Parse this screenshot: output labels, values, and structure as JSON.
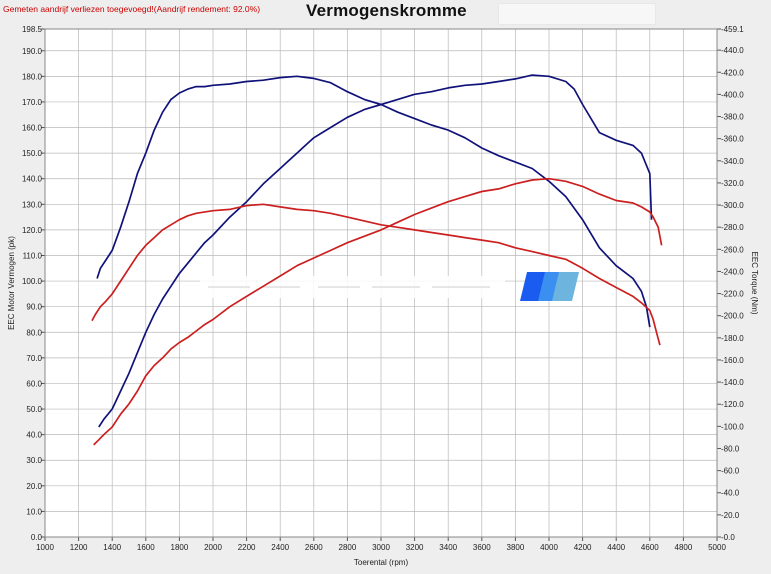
{
  "header": {
    "note": "Gemeten aandrijf verliezen toegevoegd!(Aandrijf rendement: 92.0%)",
    "title": "Vermogenskromme"
  },
  "colors": {
    "wheel": "#10127a",
    "engine": "#cc1f1f",
    "grid": "#b9b9b9",
    "plot_bg": "#ffffff",
    "page_bg": "#eeeeee",
    "logo": [
      "#1a5cf0",
      "#3b8ff0",
      "#6db4de"
    ]
  },
  "chart_data": {
    "type": "line",
    "xlabel": "Toerental (rpm)",
    "ylabel": "EEC Motor Vermogen (pk)",
    "y2label": "EEC Torque (Nm)",
    "xlim": [
      1000,
      5000
    ],
    "ylim": [
      0,
      198.5
    ],
    "y2lim": [
      0,
      459.1
    ],
    "grid": true,
    "x_ticks": [
      "1000",
      "1200",
      "1400",
      "1600",
      "1800",
      "2000",
      "2200",
      "2400",
      "2600",
      "2800",
      "3000",
      "3200",
      "3400",
      "3600",
      "3800",
      "4000",
      "4200",
      "4400",
      "4600",
      "4800",
      "5000"
    ],
    "y_ticks": [
      "0.0",
      "10.0",
      "20.0",
      "30.0",
      "40.0",
      "50.0",
      "60.0",
      "70.0",
      "80.0",
      "90.0",
      "100.0",
      "110.0",
      "120.0",
      "130.0",
      "140.0",
      "150.0",
      "160.0",
      "170.0",
      "180.0",
      "190.0",
      "198.5"
    ],
    "y2_ticks": [
      "0.0",
      "20.0",
      "40.0",
      "60.0",
      "80.0",
      "100.0",
      "120.0",
      "140.0",
      "160.0",
      "180.0",
      "200.0",
      "220.0",
      "240.0",
      "260.0",
      "280.0",
      "300.0",
      "320.0",
      "340.0",
      "360.0",
      "380.0",
      "400.0",
      "420.0",
      "440.0",
      "459.1"
    ],
    "series": [
      {
        "axis": "left",
        "color_key": "wheel",
        "x": [
          1320,
          1350,
          1400,
          1450,
          1500,
          1550,
          1600,
          1650,
          1700,
          1750,
          1800,
          1850,
          1900,
          1950,
          2000,
          2100,
          2200,
          2300,
          2400,
          2450,
          2500,
          2550,
          2600,
          2650,
          2700,
          2800,
          2900,
          3000,
          3100,
          3200,
          3300,
          3400,
          3500,
          3600,
          3700,
          3800,
          3900,
          4000,
          4100,
          4150,
          4200,
          4300,
          4400,
          4500,
          4550,
          4600,
          4610
        ],
        "y": [
          43,
          46,
          50,
          57,
          64,
          72,
          80,
          87,
          93,
          98,
          103,
          107,
          111,
          115,
          118,
          125,
          131,
          138,
          144,
          147,
          150,
          153,
          156,
          158,
          160,
          164,
          167,
          169,
          171,
          173,
          174,
          175.5,
          176.5,
          177,
          178,
          179,
          180.5,
          180,
          178,
          175,
          169,
          158,
          155,
          153,
          150,
          142,
          124
        ]
      },
      {
        "axis": "left",
        "color_key": "wheel",
        "x": [
          1310,
          1330,
          1360,
          1400,
          1450,
          1500,
          1550,
          1600,
          1650,
          1700,
          1750,
          1800,
          1850,
          1900,
          1950,
          2000,
          2100,
          2200,
          2300,
          2400,
          2500,
          2550,
          2600,
          2700,
          2800,
          2900,
          3000,
          3100,
          3200,
          3300,
          3400,
          3500,
          3600,
          3700,
          3800,
          3900,
          4000,
          4100,
          4200,
          4300,
          4400,
          4450,
          4500,
          4550,
          4580,
          4600
        ],
        "y": [
          101,
          105,
          108,
          112,
          121,
          131,
          142,
          150,
          159,
          166,
          171,
          173.5,
          175,
          176,
          176,
          176.5,
          177,
          178,
          178.5,
          179.5,
          180,
          179.6,
          179.2,
          177.5,
          174,
          171,
          169,
          166,
          163.5,
          161,
          159,
          156,
          152,
          149,
          146.5,
          144,
          139,
          133,
          124,
          113,
          106,
          103.5,
          101,
          96,
          90,
          82
        ]
      },
      {
        "axis": "left",
        "color_key": "engine",
        "x": [
          1290,
          1320,
          1350,
          1400,
          1450,
          1500,
          1550,
          1600,
          1650,
          1700,
          1750,
          1800,
          1850,
          1900,
          1950,
          2000,
          2100,
          2200,
          2300,
          2400,
          2500,
          2600,
          2700,
          2800,
          2900,
          3000,
          3100,
          3200,
          3300,
          3400,
          3500,
          3600,
          3700,
          3800,
          3900,
          4000,
          4100,
          4200,
          4300,
          4400,
          4500,
          4550,
          4600,
          4620,
          4650,
          4670
        ],
        "y": [
          36,
          38,
          40,
          43,
          48,
          52,
          57,
          63,
          67,
          70,
          73.5,
          76,
          78,
          80.5,
          83,
          85,
          90,
          94,
          98,
          102,
          106,
          109,
          112,
          115,
          117.5,
          120,
          123,
          126,
          128.5,
          131,
          133,
          135,
          136,
          138,
          139.5,
          140,
          139,
          137,
          134,
          131.5,
          130.5,
          129,
          127,
          125,
          121,
          114
        ]
      },
      {
        "axis": "left",
        "color_key": "engine",
        "x": [
          1280,
          1300,
          1330,
          1360,
          1400,
          1450,
          1500,
          1550,
          1600,
          1650,
          1700,
          1750,
          1800,
          1850,
          1900,
          2000,
          2100,
          2200,
          2300,
          2400,
          2500,
          2600,
          2700,
          2800,
          2900,
          3000,
          3100,
          3200,
          3300,
          3400,
          3500,
          3600,
          3700,
          3800,
          3900,
          4000,
          4100,
          4200,
          4300,
          4400,
          4500,
          4550,
          4600,
          4620,
          4640,
          4660
        ],
        "y": [
          84.5,
          87,
          90,
          92,
          95,
          100,
          105,
          110,
          114,
          117,
          120,
          122,
          124,
          125.5,
          126.5,
          127.5,
          128,
          129.5,
          130,
          129,
          128,
          127.5,
          126.5,
          125,
          123.5,
          122,
          121,
          120,
          119,
          118,
          117,
          116,
          115,
          113,
          111.5,
          110,
          108.5,
          105,
          101,
          97.5,
          94,
          91.5,
          88.5,
          85,
          80,
          75
        ]
      }
    ]
  }
}
